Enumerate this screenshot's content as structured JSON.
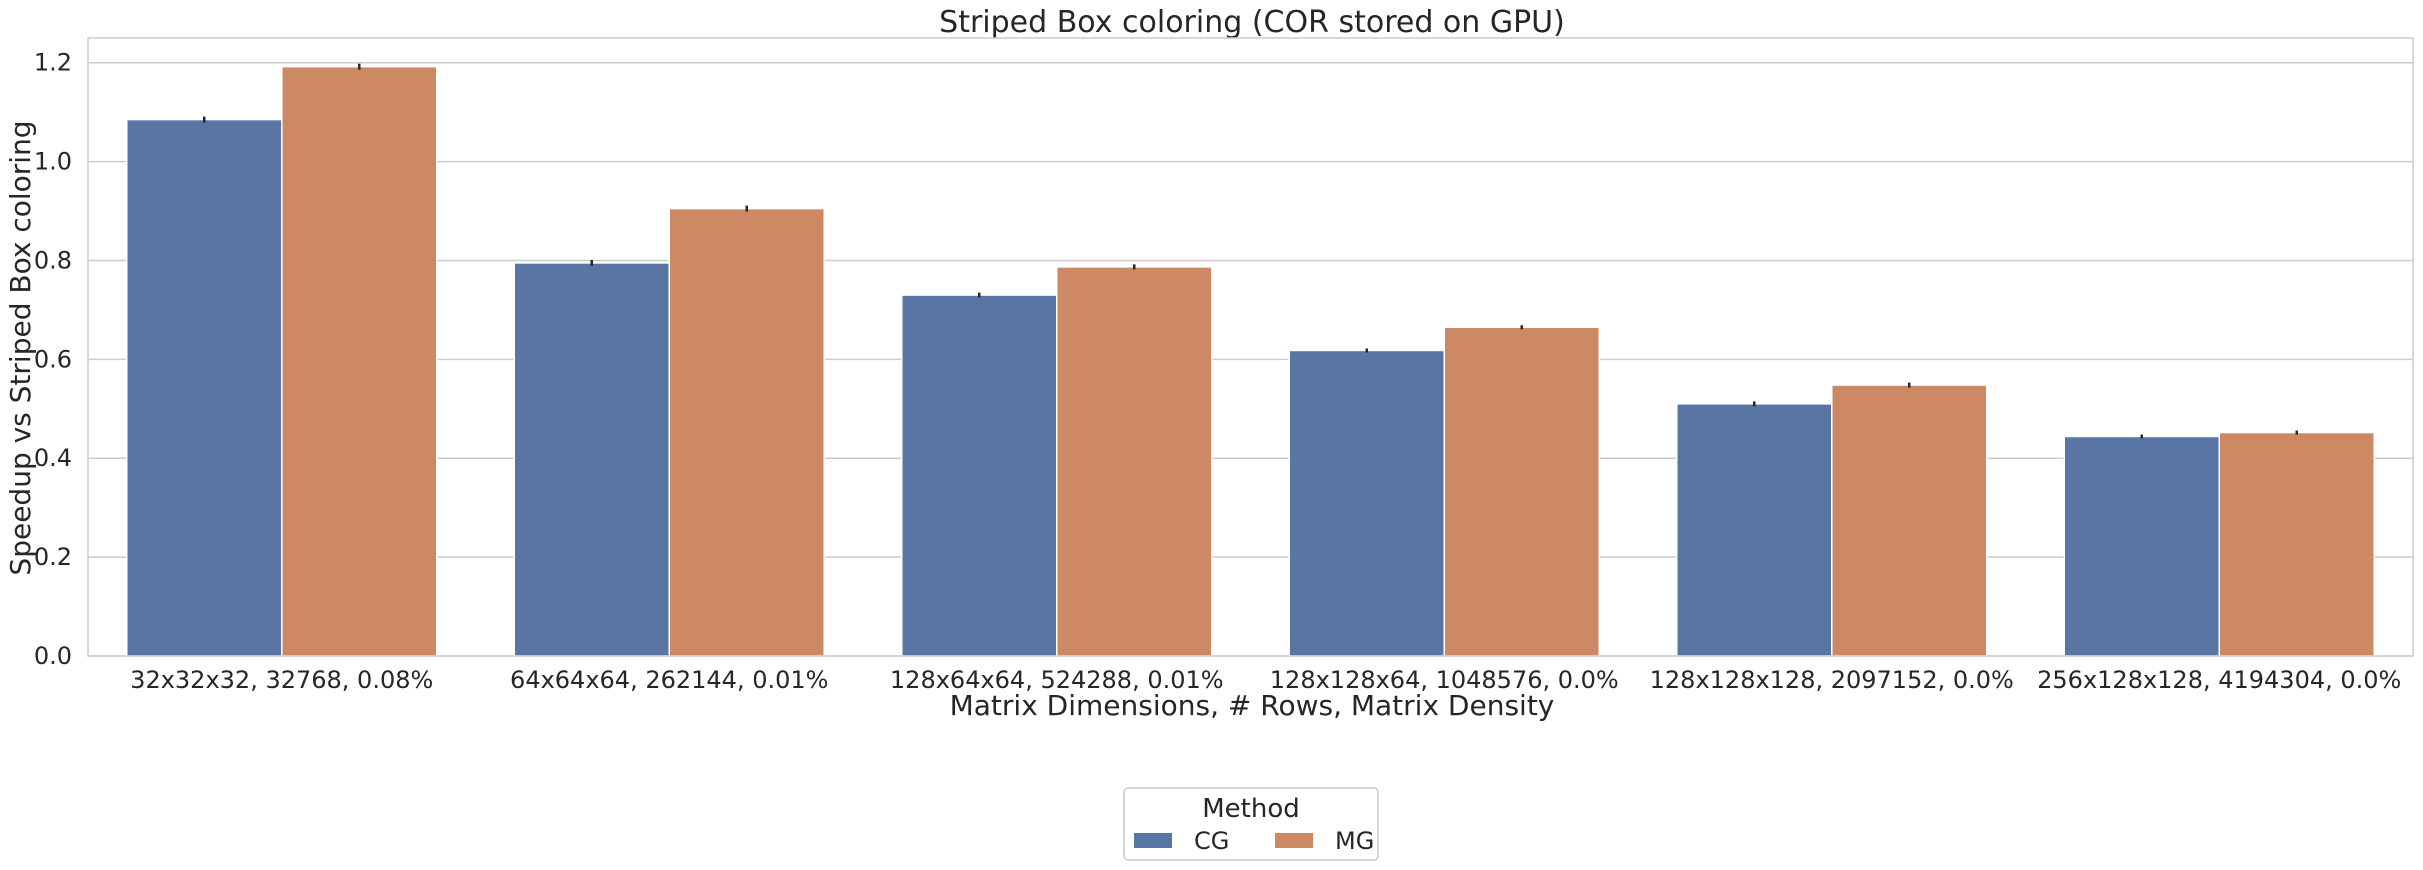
{
  "chart_data": {
    "type": "bar",
    "title": "Striped Box coloring (COR stored on GPU)",
    "xlabel": "Matrix Dimensions, # Rows, Matrix Density",
    "ylabel": "Speedup vs Striped Box coloring",
    "ylim": [
      0,
      1.25
    ],
    "yticks": [
      "0.0",
      "0.2",
      "0.4",
      "0.6",
      "0.8",
      "1.0",
      "1.2"
    ],
    "grid": "horizontal",
    "categories": [
      "32x32x32, 32768, 0.08%",
      "64x64x64, 262144, 0.01%",
      "128x64x64, 524288, 0.01%",
      "128x128x64, 1048576, 0.0%",
      "128x128x128, 2097152, 0.0%",
      "256x128x128, 4194304, 0.0%"
    ],
    "series": [
      {
        "name": "CG",
        "color": "#5875a4",
        "values": [
          1.085,
          0.795,
          0.73,
          0.618,
          0.51,
          0.444
        ]
      },
      {
        "name": "MG",
        "color": "#cc8963",
        "values": [
          1.192,
          0.905,
          0.787,
          0.665,
          0.548,
          0.452
        ]
      }
    ],
    "error_bar_halfwidth": [
      0.004,
      0.004,
      0.003,
      0.002,
      0.003,
      0.002
    ],
    "legend": {
      "title": "Method",
      "placement": "bottom-center"
    }
  }
}
